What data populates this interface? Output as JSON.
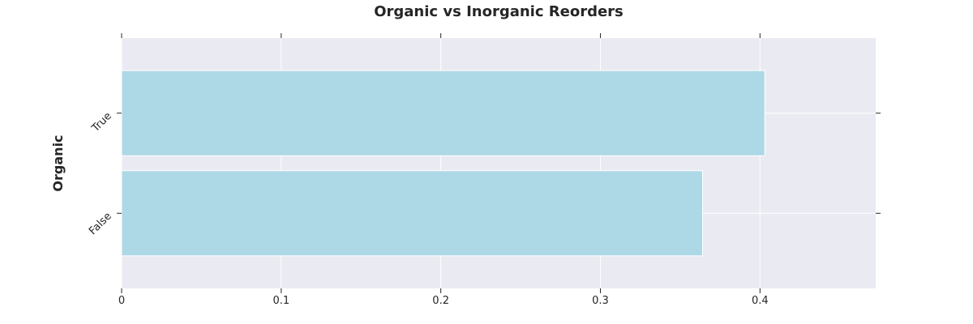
{
  "chart_data": {
    "type": "bar",
    "orientation": "horizontal",
    "title": "Organic vs Inorganic Reorders",
    "xlabel": "",
    "ylabel": "Organic",
    "categories": [
      "False",
      "True"
    ],
    "values": [
      0.364,
      0.403
    ],
    "xlim": [
      0,
      0.4725
    ],
    "xticks": [
      0,
      0.1,
      0.2,
      0.3,
      0.4
    ],
    "xtick_labels": [
      "0",
      "0.1",
      "0.2",
      "0.3",
      "0.4"
    ],
    "grid": true,
    "colors": {
      "plot_background": "#eaeaf2",
      "bar": "#add8e6",
      "grid": "#ffffff",
      "text": "#262626"
    }
  }
}
